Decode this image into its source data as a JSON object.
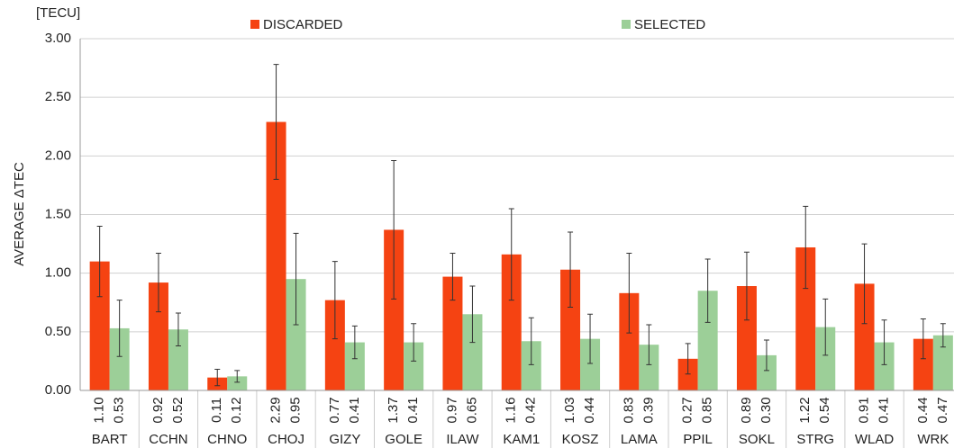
{
  "chart_data": {
    "type": "bar",
    "y_unit": "[TECU]",
    "y_label": "AVERAGE ΔTEC",
    "categories": [
      "BART",
      "CCHN",
      "CHNO",
      "CHOJ",
      "GIZY",
      "GOLE",
      "ILAW",
      "KAM1",
      "KOSZ",
      "LAMA",
      "PPIL",
      "SOKL",
      "STRG",
      "WLAD",
      "WRK"
    ],
    "series": [
      {
        "name": "DISCARDED",
        "color": "#f54312",
        "values": [
          1.1,
          0.92,
          0.11,
          2.29,
          0.77,
          1.37,
          0.97,
          1.16,
          1.03,
          0.83,
          0.27,
          0.89,
          1.22,
          0.91,
          0.44
        ],
        "value_labels": [
          "1.10",
          "0.92",
          "0.11",
          "2.29",
          "0.77",
          "1.37",
          "0.97",
          "1.16",
          "1.03",
          "0.83",
          "0.27",
          "0.89",
          "1.22",
          "0.91",
          "0.44"
        ],
        "errors": [
          0.3,
          0.25,
          0.07,
          0.49,
          0.33,
          0.59,
          0.2,
          0.39,
          0.32,
          0.34,
          0.13,
          0.29,
          0.35,
          0.34,
          0.17
        ]
      },
      {
        "name": "SELECTED",
        "color": "#9ccf98",
        "values": [
          0.53,
          0.52,
          0.12,
          0.95,
          0.41,
          0.41,
          0.65,
          0.42,
          0.44,
          0.39,
          0.85,
          0.3,
          0.54,
          0.41,
          0.47
        ],
        "value_labels": [
          "0.53",
          "0.52",
          "0.12",
          "0.95",
          "0.41",
          "0.41",
          "0.65",
          "0.42",
          "0.44",
          "0.39",
          "0.85",
          "0.30",
          "0.54",
          "0.41",
          "0.47"
        ],
        "errors": [
          0.24,
          0.14,
          0.05,
          0.39,
          0.14,
          0.16,
          0.24,
          0.2,
          0.21,
          0.17,
          0.27,
          0.13,
          0.24,
          0.19,
          0.1
        ]
      }
    ],
    "ylim": [
      0,
      3
    ],
    "yticks": [
      {
        "value": 0,
        "label": "0.00"
      },
      {
        "value": 0.5,
        "label": "0.50"
      },
      {
        "value": 1,
        "label": "1.00"
      },
      {
        "value": 1.5,
        "label": "1.50"
      },
      {
        "value": 2,
        "label": "2.00"
      },
      {
        "value": 2.5,
        "label": "2.50"
      },
      {
        "value": 3,
        "label": "3.00"
      }
    ],
    "grid": true
  }
}
